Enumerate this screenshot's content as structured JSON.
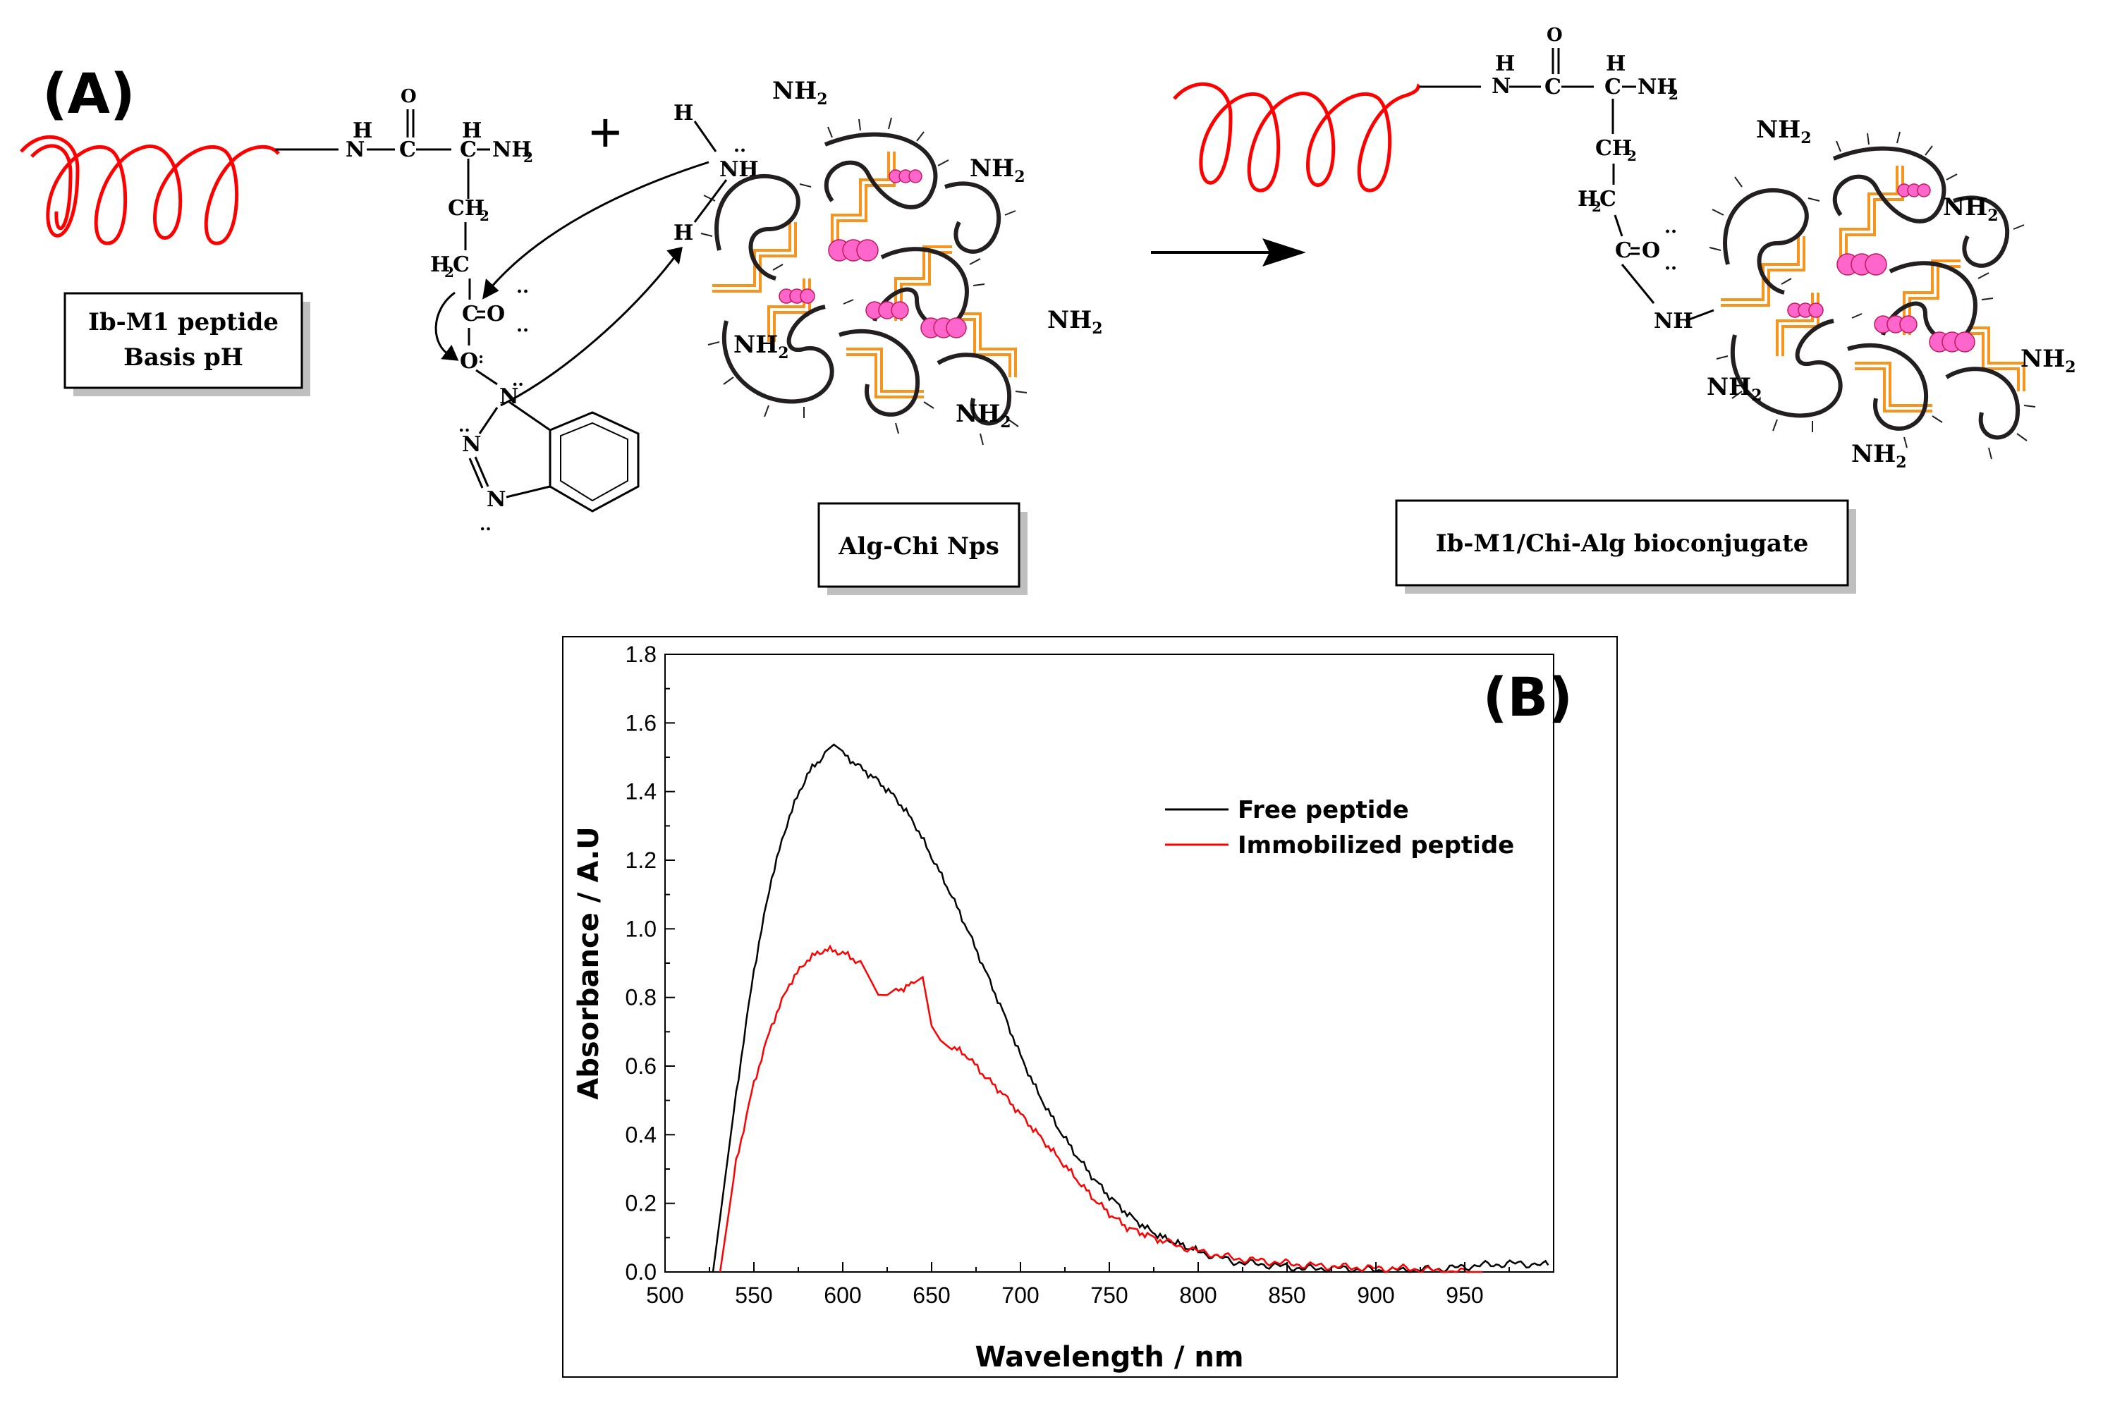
{
  "scheme": {
    "panel_label": "(A)",
    "peptide_box": {
      "line1": "Ib-M1 peptide",
      "line2": "Basis pH"
    },
    "nps_box": "Alg-Chi Nps",
    "product_box": "Ib-M1/Chi-Alg bioconjugate",
    "plus_sign": "+",
    "amine_group": "NH",
    "amine_label": "NH",
    "amine_sub": "2",
    "amide_label": "NH",
    "colors": {
      "peptide": "#ff0000",
      "chain": "#f7941d",
      "bead": "#ff66cc",
      "strand": "#231f20"
    }
  },
  "chart_data": {
    "type": "line",
    "panel_label": "(B)",
    "xlabel": "Wavelength / nm",
    "ylabel": "Absorbance / A.U",
    "xlim": [
      500,
      1000
    ],
    "ylim": [
      0.0,
      1.8
    ],
    "xticks": [
      500,
      550,
      600,
      650,
      700,
      750,
      800,
      850,
      900,
      950
    ],
    "yticks": [
      "0.0",
      "0.2",
      "0.4",
      "0.6",
      "0.8",
      "1.0",
      "1.2",
      "1.4",
      "1.6",
      "1.8"
    ],
    "legend_position": "upper-right",
    "series": [
      {
        "name": "Free peptide",
        "color": "#000000",
        "x": [
          527,
          540,
          550,
          560,
          570,
          580,
          590,
          595,
          600,
          610,
          620,
          630,
          640,
          650,
          660,
          670,
          680,
          690,
          700,
          710,
          720,
          730,
          740,
          750,
          760,
          770,
          780,
          790,
          800,
          820,
          840,
          860,
          880,
          900,
          920,
          940,
          960,
          980,
          997
        ],
        "y": [
          0.0,
          0.52,
          0.88,
          1.15,
          1.33,
          1.45,
          1.51,
          1.53,
          1.51,
          1.47,
          1.43,
          1.38,
          1.31,
          1.21,
          1.11,
          1.0,
          0.88,
          0.76,
          0.63,
          0.52,
          0.43,
          0.35,
          0.28,
          0.22,
          0.17,
          0.13,
          0.1,
          0.08,
          0.06,
          0.03,
          0.02,
          0.01,
          0.01,
          0.005,
          0.005,
          0.01,
          0.02,
          0.025,
          0.02
        ]
      },
      {
        "name": "Immobilized peptide",
        "color": "#ff0000",
        "x": [
          531,
          540,
          550,
          560,
          570,
          580,
          590,
          600,
          610,
          615,
          620,
          625,
          630,
          640,
          645,
          650,
          655,
          660,
          670,
          680,
          690,
          700,
          710,
          720,
          730,
          740,
          750,
          760,
          770,
          780,
          800,
          820,
          840,
          860,
          880,
          900,
          920,
          940,
          960
        ],
        "y": [
          0.0,
          0.32,
          0.55,
          0.72,
          0.84,
          0.91,
          0.94,
          0.93,
          0.9,
          0.85,
          0.8,
          0.8,
          0.82,
          0.84,
          0.86,
          0.72,
          0.68,
          0.66,
          0.63,
          0.57,
          0.52,
          0.46,
          0.4,
          0.34,
          0.28,
          0.22,
          0.17,
          0.13,
          0.11,
          0.09,
          0.06,
          0.04,
          0.03,
          0.02,
          0.015,
          0.01,
          0.01,
          0.0,
          0.0
        ]
      }
    ]
  }
}
